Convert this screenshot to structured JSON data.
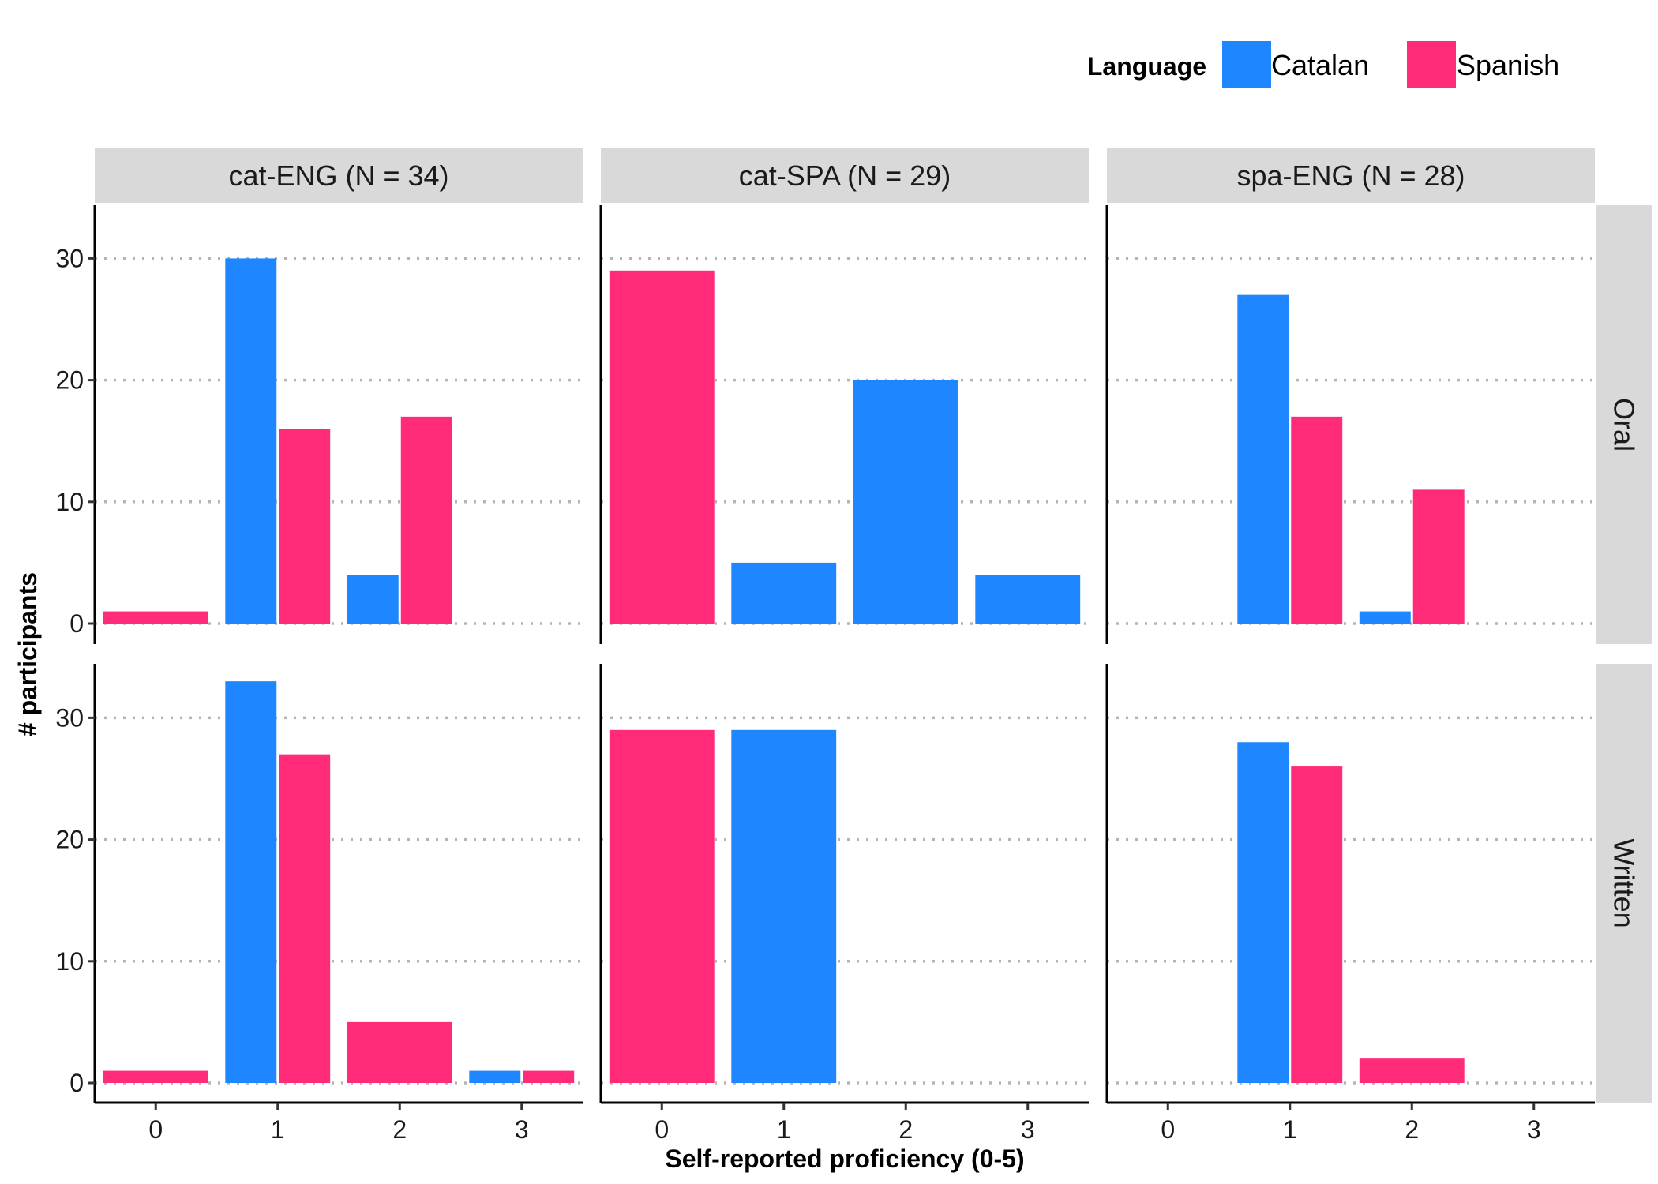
{
  "chart_data": {
    "type": "bar",
    "facet_columns": [
      "cat-ENG (N = 34)",
      "cat-SPA (N = 29)",
      "spa-ENG (N = 28)"
    ],
    "facet_rows": [
      "Oral",
      "Written"
    ],
    "categories": [
      "0",
      "1",
      "2",
      "3"
    ],
    "xlabel": "Self-reported proficiency (0-5)",
    "ylabel": "# participants",
    "ylim": [
      0,
      33
    ],
    "yticks": [
      "0",
      "10",
      "20",
      "30"
    ],
    "grid": "horizontal dotted",
    "legend": {
      "title": "Language",
      "position": "top-right",
      "items": [
        {
          "label": "Catalan",
          "color": "#1e87ff"
        },
        {
          "label": "Spanish",
          "color": "#ff2a78"
        }
      ]
    },
    "panels": [
      {
        "column": 0,
        "row": 0,
        "series": [
          {
            "name": "Catalan",
            "values": [
              0,
              30,
              4,
              0
            ]
          },
          {
            "name": "Spanish",
            "values": [
              1,
              16,
              17,
              0
            ]
          }
        ]
      },
      {
        "column": 1,
        "row": 0,
        "series": [
          {
            "name": "Catalan",
            "values": [
              0,
              5,
              20,
              4
            ]
          },
          {
            "name": "Spanish",
            "values": [
              29,
              0,
              0,
              0
            ]
          }
        ]
      },
      {
        "column": 2,
        "row": 0,
        "series": [
          {
            "name": "Catalan",
            "values": [
              0,
              27,
              1,
              0
            ]
          },
          {
            "name": "Spanish",
            "values": [
              0,
              17,
              11,
              0
            ]
          }
        ]
      },
      {
        "column": 0,
        "row": 1,
        "series": [
          {
            "name": "Catalan",
            "values": [
              0,
              33,
              0,
              1
            ]
          },
          {
            "name": "Spanish",
            "values": [
              1,
              27,
              5,
              1
            ]
          }
        ]
      },
      {
        "column": 1,
        "row": 1,
        "series": [
          {
            "name": "Catalan",
            "values": [
              0,
              29,
              0,
              0
            ]
          },
          {
            "name": "Spanish",
            "values": [
              29,
              0,
              0,
              0
            ]
          }
        ]
      },
      {
        "column": 2,
        "row": 1,
        "series": [
          {
            "name": "Catalan",
            "values": [
              0,
              28,
              0,
              0
            ]
          },
          {
            "name": "Spanish",
            "values": [
              0,
              26,
              2,
              0
            ]
          }
        ]
      }
    ]
  }
}
